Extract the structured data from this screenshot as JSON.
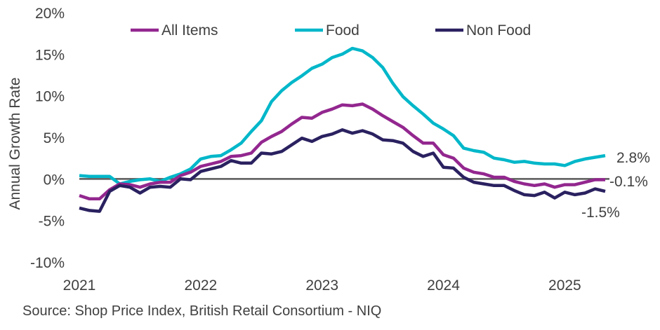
{
  "chart_data": {
    "type": "line",
    "title": "",
    "xlabel": "",
    "ylabel": "Annual Growth Rate",
    "ylim": [
      -10,
      20
    ],
    "y_ticks": [
      "-10%",
      "-5%",
      "0%",
      "5%",
      "10%",
      "15%",
      "20%"
    ],
    "y_tick_values": [
      -10,
      -5,
      0,
      5,
      10,
      15,
      20
    ],
    "x_ticks": [
      "2021",
      "2022",
      "2023",
      "2024",
      "2025"
    ],
    "x_start": "2021-01",
    "x_frequency": "monthly",
    "legend_position": "top",
    "grid": false,
    "zero_line": true,
    "series": [
      {
        "name": "All Items",
        "color": "#93278F",
        "end_label": "-0.1%",
        "values": [
          -2.0,
          -2.4,
          -2.4,
          -1.3,
          -0.6,
          -0.7,
          -1.0,
          -0.6,
          -0.4,
          -0.4,
          0.4,
          0.8,
          1.5,
          1.8,
          2.1,
          2.7,
          2.8,
          3.1,
          4.4,
          5.1,
          5.7,
          6.6,
          7.4,
          7.3,
          8.0,
          8.4,
          8.9,
          8.8,
          9.0,
          8.4,
          7.6,
          6.9,
          6.2,
          5.2,
          4.3,
          4.3,
          2.9,
          2.5,
          1.3,
          0.8,
          0.6,
          0.2,
          0.2,
          -0.3,
          -0.6,
          -0.8,
          -0.6,
          -1.0,
          -0.7,
          -0.7,
          -0.4,
          -0.1,
          -0.1
        ]
      },
      {
        "name": "Food",
        "color": "#00B7C9",
        "end_label": "2.8%",
        "values": [
          0.4,
          0.3,
          0.3,
          0.3,
          -0.6,
          -0.3,
          -0.1,
          0.0,
          -0.3,
          0.2,
          0.6,
          1.2,
          2.4,
          2.7,
          2.8,
          3.5,
          4.3,
          5.7,
          7.0,
          9.3,
          10.6,
          11.6,
          12.4,
          13.3,
          13.8,
          14.6,
          15.0,
          15.7,
          15.4,
          14.6,
          13.4,
          11.5,
          9.9,
          8.8,
          7.8,
          6.7,
          6.0,
          5.2,
          3.7,
          3.4,
          3.2,
          2.5,
          2.3,
          2.0,
          2.1,
          1.9,
          1.8,
          1.8,
          1.6,
          2.1,
          2.4,
          2.6,
          2.8
        ]
      },
      {
        "name": "Non Food",
        "color": "#2A2160",
        "end_label": "-1.5%",
        "values": [
          -3.5,
          -3.8,
          -3.9,
          -1.5,
          -0.8,
          -1.0,
          -1.7,
          -1.0,
          -0.9,
          -1.0,
          0.0,
          -0.1,
          0.9,
          1.2,
          1.5,
          2.2,
          1.9,
          1.9,
          3.1,
          3.0,
          3.3,
          4.1,
          4.9,
          4.5,
          5.1,
          5.4,
          5.9,
          5.5,
          5.8,
          5.4,
          4.7,
          4.6,
          4.3,
          3.3,
          2.7,
          3.1,
          1.4,
          1.3,
          0.2,
          -0.4,
          -0.6,
          -0.8,
          -0.8,
          -1.4,
          -1.9,
          -2.0,
          -1.6,
          -2.3,
          -1.6,
          -1.9,
          -1.7,
          -1.2,
          -1.5
        ]
      }
    ],
    "source": "Source: Shop Price Index, British Retail Consortium - NIQ"
  }
}
